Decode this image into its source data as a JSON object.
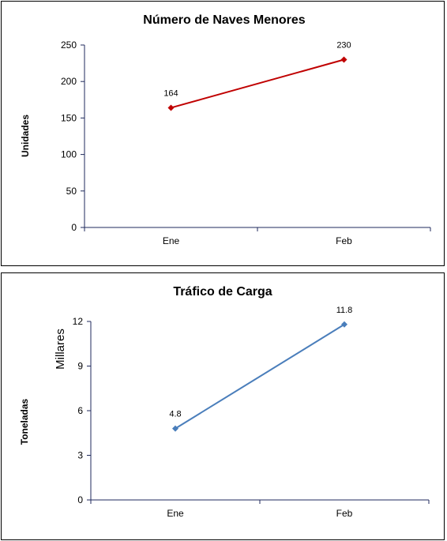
{
  "chart_data": [
    {
      "type": "line",
      "title": "Número de Naves Menores",
      "ylabel": "Unidades",
      "categories": [
        "Ene",
        "Feb"
      ],
      "series": [
        {
          "values": [
            164,
            230
          ],
          "data_labels": [
            "164",
            "230"
          ],
          "color": "#C00000"
        }
      ],
      "ylim": [
        0,
        250
      ],
      "yticks": [
        "0",
        "50",
        "100",
        "150",
        "200",
        "250"
      ],
      "grid": false,
      "legend": "none",
      "marker": "diamond"
    },
    {
      "type": "line",
      "title": "Tráfico de Carga",
      "ylabel": "Toneladas",
      "unit_label": "Millares",
      "categories": [
        "Ene",
        "Feb"
      ],
      "series": [
        {
          "values": [
            4.8,
            11.8
          ],
          "data_labels": [
            "4.8",
            "11.8"
          ],
          "color": "#4A7EBB"
        }
      ],
      "ylim": [
        0,
        12
      ],
      "yticks": [
        "0",
        "3",
        "6",
        "9",
        "12"
      ],
      "grid": false,
      "legend": "none",
      "marker": "diamond"
    }
  ]
}
